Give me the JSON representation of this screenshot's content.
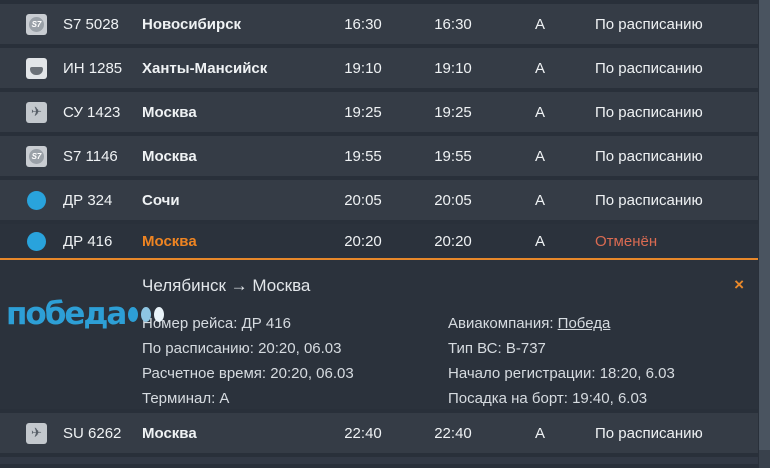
{
  "board": {
    "rows": [
      {
        "flight": "S7 5028",
        "city": "Новосибирск",
        "scheduled": "16:30",
        "estimated": "16:30",
        "terminal": "А",
        "status": "По расписанию",
        "airline": "s7",
        "state": "normal"
      },
      {
        "flight": "ИН 1285",
        "city": "Ханты-Мансийск",
        "scheduled": "19:10",
        "estimated": "19:10",
        "terminal": "А",
        "status": "По расписанию",
        "airline": "komi",
        "state": "normal"
      },
      {
        "flight": "СУ 1423",
        "city": "Москва",
        "scheduled": "19:25",
        "estimated": "19:25",
        "terminal": "А",
        "status": "По расписанию",
        "airline": "aeroflot",
        "state": "normal"
      },
      {
        "flight": "S7 1146",
        "city": "Москва",
        "scheduled": "19:55",
        "estimated": "19:55",
        "terminal": "А",
        "status": "По расписанию",
        "airline": "s7",
        "state": "normal"
      },
      {
        "flight": "ДР 324",
        "city": "Сочи",
        "scheduled": "20:05",
        "estimated": "20:05",
        "terminal": "А",
        "status": "По расписанию",
        "airline": "pobeda",
        "state": "normal"
      },
      {
        "flight": "ДР 416",
        "city": "Москва",
        "scheduled": "20:20",
        "estimated": "20:20",
        "terminal": "А",
        "status": "Отменён",
        "airline": "pobeda",
        "state": "cancelled"
      },
      {
        "flight": "SU 6262",
        "city": "Москва",
        "scheduled": "22:40",
        "estimated": "22:40",
        "terminal": "А",
        "status": "По расписанию",
        "airline": "aeroflot",
        "state": "normal"
      }
    ],
    "expanded_row_index": 5
  },
  "detail_panel": {
    "route_title": "Челябинск → Москва",
    "airline_logo_text": "победа",
    "close_icon": "×",
    "details_left": [
      {
        "label": "Номер рейса",
        "value": "ДР 416"
      },
      {
        "label": "По расписанию",
        "value": "20:20, 06.03"
      },
      {
        "label": "Расчетное время",
        "value": "20:20, 06.03"
      },
      {
        "label": "Терминал",
        "value": "А"
      }
    ],
    "details_right": [
      {
        "label": "Авиакомпания",
        "value": "Победа",
        "link": true
      },
      {
        "label": "Тип ВС",
        "value": "B-737",
        "link": false
      },
      {
        "label": "Начало регистрации",
        "value": "18:20, 6.03",
        "link": false
      },
      {
        "label": "Посадка на борт",
        "value": "19:40, 6.03",
        "link": false
      }
    ]
  },
  "colors": {
    "accent_orange": "#e8882a",
    "cancelled_red": "#da6b52",
    "highlight_city_orange": "#ee8422",
    "pobeda_blue": "#2d9fd6"
  }
}
